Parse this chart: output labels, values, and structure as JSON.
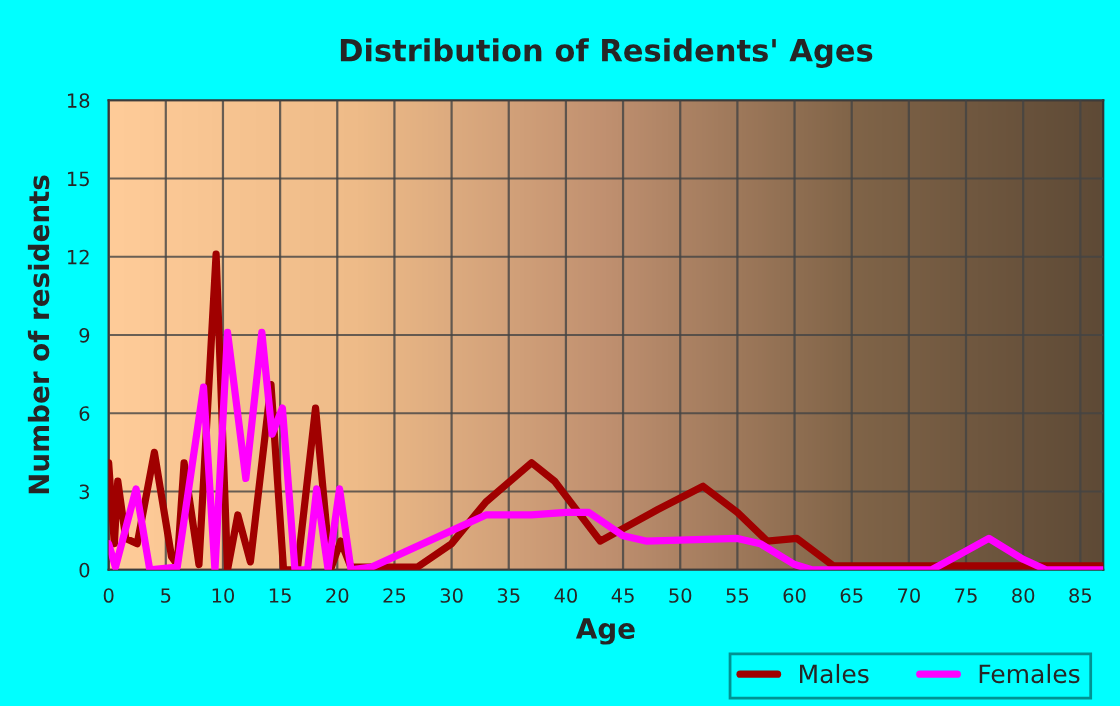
{
  "chart_data": {
    "type": "line",
    "title": "Distribution of Residents' Ages",
    "xlabel": "Age",
    "ylabel": "Number of residents",
    "xlim": [
      0,
      87
    ],
    "xticks": [
      0,
      5,
      10,
      15,
      20,
      25,
      30,
      35,
      40,
      45,
      50,
      55,
      60,
      65,
      70,
      75,
      80,
      85
    ],
    "ylim": [
      0,
      18
    ],
    "yticks": [
      0,
      3,
      6,
      9,
      12,
      15,
      18
    ],
    "grid": true,
    "legend": "bottom right",
    "marker": "none",
    "line_style": "solid",
    "series": [
      {
        "name": "Males",
        "color": "#a00000",
        "x": [
          0,
          0.5,
          0.8,
          1.5,
          2.5,
          4,
          5.5,
          6,
          6.6,
          7.9,
          9.4,
          10.4,
          11.3,
          12.4,
          14.2,
          15.3,
          16.5,
          18.1,
          19.4,
          20.3,
          21.2,
          27,
          30,
          33,
          37,
          39,
          43,
          48,
          52,
          55,
          57.6,
          60.2,
          63.4,
          87
        ],
        "values": [
          4.1,
          1,
          3.4,
          1.2,
          1.0,
          4.5,
          0.5,
          0.2,
          4.1,
          0.2,
          12.1,
          0,
          2.1,
          0.3,
          7.1,
          0,
          0,
          6.2,
          0,
          1.1,
          0.1,
          0.1,
          1,
          2.6,
          4.1,
          3.4,
          1.1,
          2.3,
          3.2,
          2.2,
          1.1,
          1.2,
          0.15,
          0.15
        ]
      },
      {
        "name": "Females",
        "color": "#ff00ff",
        "x": [
          0,
          0.6,
          2.4,
          3.6,
          6,
          8.3,
          9.3,
          10.4,
          12,
          13.4,
          14.3,
          15.2,
          16.3,
          17.4,
          18.2,
          19.2,
          20.2,
          21.2,
          23,
          30,
          33,
          37,
          40,
          42,
          45,
          47,
          55,
          57,
          60,
          61.5,
          72,
          74.5,
          77,
          80,
          82,
          87
        ],
        "values": [
          1.0,
          0.1,
          3.1,
          0,
          0.1,
          7.0,
          0,
          9.1,
          3.5,
          9.1,
          5.2,
          6.2,
          0,
          0,
          3.1,
          0,
          3.1,
          0,
          0.1,
          1.5,
          2.1,
          2.1,
          2.2,
          2.2,
          1.3,
          1.1,
          1.2,
          1.0,
          0.2,
          0,
          0,
          0.6,
          1.2,
          0.4,
          0,
          0
        ]
      }
    ]
  }
}
